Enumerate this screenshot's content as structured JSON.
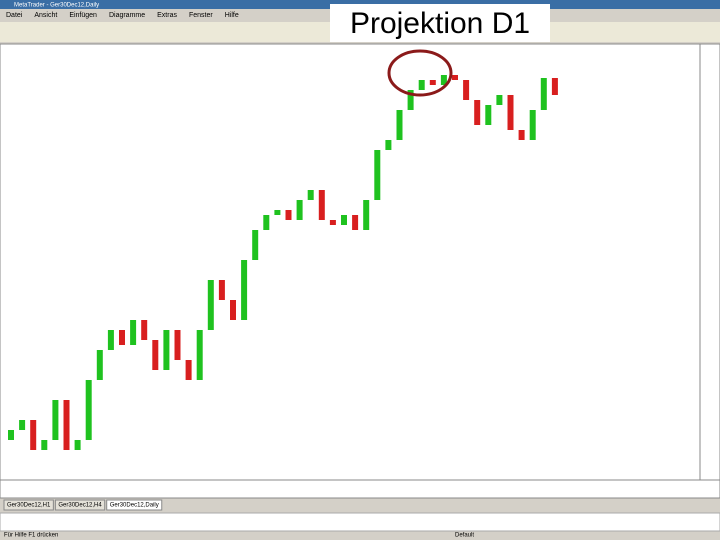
{
  "slide_title": "Projektion D1",
  "window_title": "MetaTrader - Ger30Dec12,Daily",
  "menu": [
    "Datei",
    "Ansicht",
    "Einfügen",
    "Diagramme",
    "Extras",
    "Fenster",
    "Hilfe"
  ],
  "tabs": [
    "Ger30Dec12,H1",
    "Ger30Dec12,H4",
    "Ger30Dec12,Daily"
  ],
  "status": {
    "help": "Für Hilfe F1 drücken",
    "profile": "Default"
  },
  "chart_data": {
    "type": "candlestick",
    "ylim": [
      5900,
      7600
    ],
    "up_color": "#1fc21f",
    "down_color": "#d81f1f",
    "open": [
      6020,
      6060,
      6100,
      5980,
      6020,
      6180,
      5980,
      6020,
      6260,
      6380,
      6460,
      6400,
      6500,
      6420,
      6300,
      6460,
      6340,
      6260,
      6460,
      6660,
      6580,
      6500,
      6740,
      6860,
      6920,
      6940,
      6900,
      6980,
      7020,
      6900,
      6880,
      6920,
      6860,
      6980,
      7180,
      7220,
      7340,
      7420,
      7460,
      7440,
      7480,
      7460,
      7380,
      7280,
      7360,
      7400,
      7260,
      7220,
      7340,
      7468
    ],
    "close": [
      6060,
      6100,
      5980,
      6020,
      6180,
      5980,
      6020,
      6260,
      6380,
      6460,
      6400,
      6500,
      6420,
      6300,
      6460,
      6340,
      6260,
      6460,
      6660,
      6580,
      6500,
      6740,
      6860,
      6920,
      6940,
      6900,
      6980,
      7020,
      6900,
      6880,
      6920,
      6860,
      6980,
      7180,
      7220,
      7340,
      7420,
      7460,
      7440,
      7480,
      7460,
      7380,
      7280,
      7360,
      7400,
      7260,
      7220,
      7340,
      7468,
      7400
    ]
  }
}
